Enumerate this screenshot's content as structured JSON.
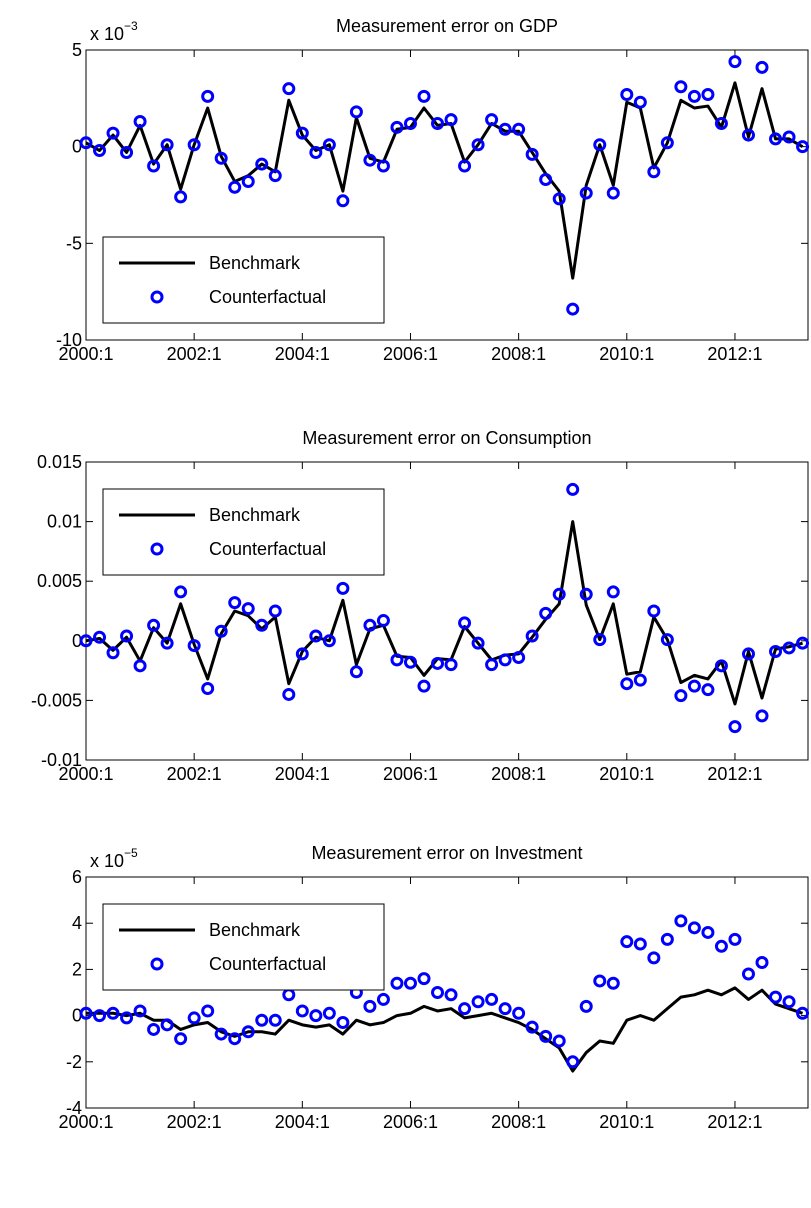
{
  "chart_data": [
    {
      "type": "line",
      "title": "Measurement error on GDP",
      "multiplier": "x 10",
      "multiplier_exponent": "−3",
      "categories": [
        "2000:1",
        null,
        null,
        null,
        null,
        null,
        null,
        null,
        "2002:1",
        null,
        null,
        null,
        null,
        null,
        null,
        null,
        "2004:1",
        null,
        null,
        null,
        null,
        null,
        null,
        null,
        "2006:1",
        null,
        null,
        null,
        null,
        null,
        null,
        null,
        "2008:1",
        null,
        null,
        null,
        null,
        null,
        null,
        null,
        "2010:1",
        null,
        null,
        null,
        null,
        null,
        null,
        null,
        "2012:1",
        null,
        null,
        null,
        null,
        null
      ],
      "series": [
        {
          "name": "Benchmark",
          "color": "#000000",
          "mode": "line",
          "values": [
            0.2,
            -0.2,
            0.6,
            -0.3,
            1.1,
            -0.9,
            0.1,
            -2.2,
            0.1,
            2.0,
            -0.5,
            -1.8,
            -1.5,
            -0.9,
            -1.3,
            2.4,
            0.6,
            -0.2,
            0.1,
            -2.3,
            1.5,
            -0.6,
            -0.8,
            0.9,
            1.0,
            2.0,
            1.1,
            1.2,
            -0.8,
            0.1,
            1.2,
            0.8,
            0.8,
            -0.3,
            -1.4,
            -2.3,
            -6.8,
            -2.0,
            0.1,
            -2.0,
            2.3,
            2.0,
            -1.1,
            0.2,
            2.4,
            2.0,
            2.1,
            1.0,
            3.3,
            0.5,
            3.0,
            0.4,
            0.4,
            0.0
          ]
        },
        {
          "name": "Counterfactual",
          "color": "#0000ff",
          "mode": "marker",
          "values": [
            0.2,
            -0.2,
            0.7,
            -0.3,
            1.3,
            -1.0,
            0.1,
            -2.6,
            0.1,
            2.6,
            -0.6,
            -2.1,
            -1.8,
            -0.9,
            -1.5,
            3.0,
            0.7,
            -0.3,
            0.1,
            -2.8,
            1.8,
            -0.7,
            -1.0,
            1.0,
            1.2,
            2.6,
            1.2,
            1.4,
            -1.0,
            0.1,
            1.4,
            0.9,
            0.9,
            -0.4,
            -1.7,
            -2.7,
            -8.4,
            -2.4,
            0.1,
            -2.4,
            2.7,
            2.3,
            -1.3,
            0.2,
            3.1,
            2.6,
            2.7,
            1.2,
            4.4,
            0.6,
            4.1,
            0.4,
            0.5,
            0.0
          ]
        }
      ],
      "ylim": [
        -10,
        5
      ],
      "yticks": [
        -10,
        -5,
        0,
        5
      ],
      "legend": "lower left"
    },
    {
      "type": "line",
      "title": "Measurement error on Consumption",
      "categories": [
        "2000:1",
        null,
        null,
        null,
        null,
        null,
        null,
        null,
        "2002:1",
        null,
        null,
        null,
        null,
        null,
        null,
        null,
        "2004:1",
        null,
        null,
        null,
        null,
        null,
        null,
        null,
        "2006:1",
        null,
        null,
        null,
        null,
        null,
        null,
        null,
        "2008:1",
        null,
        null,
        null,
        null,
        null,
        null,
        null,
        "2010:1",
        null,
        null,
        null,
        null,
        null,
        null,
        null,
        "2012:1",
        null,
        null,
        null,
        null,
        null
      ],
      "series": [
        {
          "name": "Benchmark",
          "color": "#000000",
          "mode": "line",
          "values": [
            0,
            0.0002,
            -0.0008,
            0.0003,
            -0.0017,
            0.0011,
            -0.0002,
            0.0031,
            -0.0003,
            -0.0032,
            0.0006,
            0.0025,
            0.0021,
            0.001,
            0.002,
            -0.0036,
            -0.0009,
            0.0003,
            0,
            0.0034,
            -0.002,
            0.001,
            0.0013,
            -0.0013,
            -0.0014,
            -0.0029,
            -0.0015,
            -0.0016,
            0.0012,
            -0.0002,
            -0.0016,
            -0.0012,
            -0.0011,
            0.0003,
            0.0018,
            0.0031,
            0.01,
            0.003,
            0.0001,
            0.0031,
            -0.0028,
            -0.0026,
            0.002,
            0.0001,
            -0.0035,
            -0.0029,
            -0.0032,
            -0.0017,
            -0.0053,
            -0.0009,
            -0.0048,
            -0.0007,
            -0.0005,
            -0.0002
          ]
        },
        {
          "name": "Counterfactual",
          "color": "#0000ff",
          "mode": "marker",
          "values": [
            0,
            0.0003,
            -0.001,
            0.0004,
            -0.0021,
            0.0013,
            -0.0002,
            0.0041,
            -0.0004,
            -0.004,
            0.0008,
            0.0032,
            0.0027,
            0.0013,
            0.0025,
            -0.0045,
            -0.0011,
            0.0004,
            0,
            0.0044,
            -0.0026,
            0.0013,
            0.0017,
            -0.0016,
            -0.0018,
            -0.0038,
            -0.0019,
            -0.002,
            0.0015,
            -0.0002,
            -0.002,
            -0.0016,
            -0.0014,
            0.0004,
            0.0023,
            0.0039,
            0.0127,
            0.0039,
            0.0001,
            0.0041,
            -0.0036,
            -0.0033,
            0.0025,
            0.0001,
            -0.0046,
            -0.0038,
            -0.0041,
            -0.0021,
            -0.0072,
            -0.0011,
            -0.0063,
            -0.0009,
            -0.0006,
            -0.0002
          ]
        }
      ],
      "ylim": [
        -0.01,
        0.015
      ],
      "yticks": [
        -0.01,
        -0.005,
        0,
        0.005,
        0.01,
        0.015
      ],
      "legend": "upper left"
    },
    {
      "type": "line",
      "title": "Measurement error on Investment",
      "multiplier": "x 10",
      "multiplier_exponent": "−5",
      "categories": [
        "2000:1",
        null,
        null,
        null,
        null,
        null,
        null,
        null,
        "2002:1",
        null,
        null,
        null,
        null,
        null,
        null,
        null,
        "2004:1",
        null,
        null,
        null,
        null,
        null,
        null,
        null,
        "2006:1",
        null,
        null,
        null,
        null,
        null,
        null,
        null,
        "2008:1",
        null,
        null,
        null,
        null,
        null,
        null,
        null,
        "2010:1",
        null,
        null,
        null,
        null,
        null,
        null,
        null,
        "2012:1",
        null,
        null,
        null,
        null,
        null
      ],
      "series": [
        {
          "name": "Benchmark",
          "color": "#000000",
          "mode": "line",
          "values": [
            0.1,
            0.1,
            0.1,
            0.0,
            0.1,
            -0.2,
            -0.2,
            -0.6,
            -0.4,
            -0.3,
            -0.7,
            -0.9,
            -0.7,
            -0.7,
            -0.8,
            -0.2,
            -0.4,
            -0.5,
            -0.4,
            -0.8,
            -0.2,
            -0.4,
            -0.3,
            0.0,
            0.1,
            0.4,
            0.2,
            0.3,
            -0.1,
            0.0,
            0.1,
            -0.1,
            -0.3,
            -0.6,
            -1.0,
            -1.4,
            -2.4,
            -1.6,
            -1.1,
            -1.2,
            -0.2,
            0.0,
            -0.2,
            0.3,
            0.8,
            0.9,
            1.1,
            0.9,
            1.2,
            0.7,
            1.1,
            0.5,
            0.3,
            0.1
          ]
        },
        {
          "name": "Counterfactual",
          "color": "#0000ff",
          "mode": "marker",
          "values": [
            0.1,
            0.0,
            0.1,
            -0.1,
            0.2,
            -0.6,
            -0.4,
            -1.0,
            -0.1,
            0.2,
            -0.8,
            -1.0,
            -0.7,
            -0.2,
            -0.2,
            0.9,
            0.2,
            0.0,
            0.1,
            -0.3,
            1.0,
            0.4,
            0.7,
            1.4,
            1.4,
            1.6,
            1.0,
            0.9,
            0.3,
            0.6,
            0.7,
            0.3,
            0.1,
            -0.5,
            -0.9,
            -1.1,
            -2.0,
            0.4,
            1.5,
            1.4,
            3.2,
            3.1,
            2.5,
            3.3,
            4.1,
            3.8,
            3.6,
            3.0,
            3.3,
            1.8,
            2.3,
            0.8,
            0.6,
            0.1
          ]
        }
      ],
      "ylim": [
        -4,
        6
      ],
      "yticks": [
        -4,
        -2,
        0,
        2,
        4,
        6
      ],
      "legend": "upper left"
    }
  ]
}
